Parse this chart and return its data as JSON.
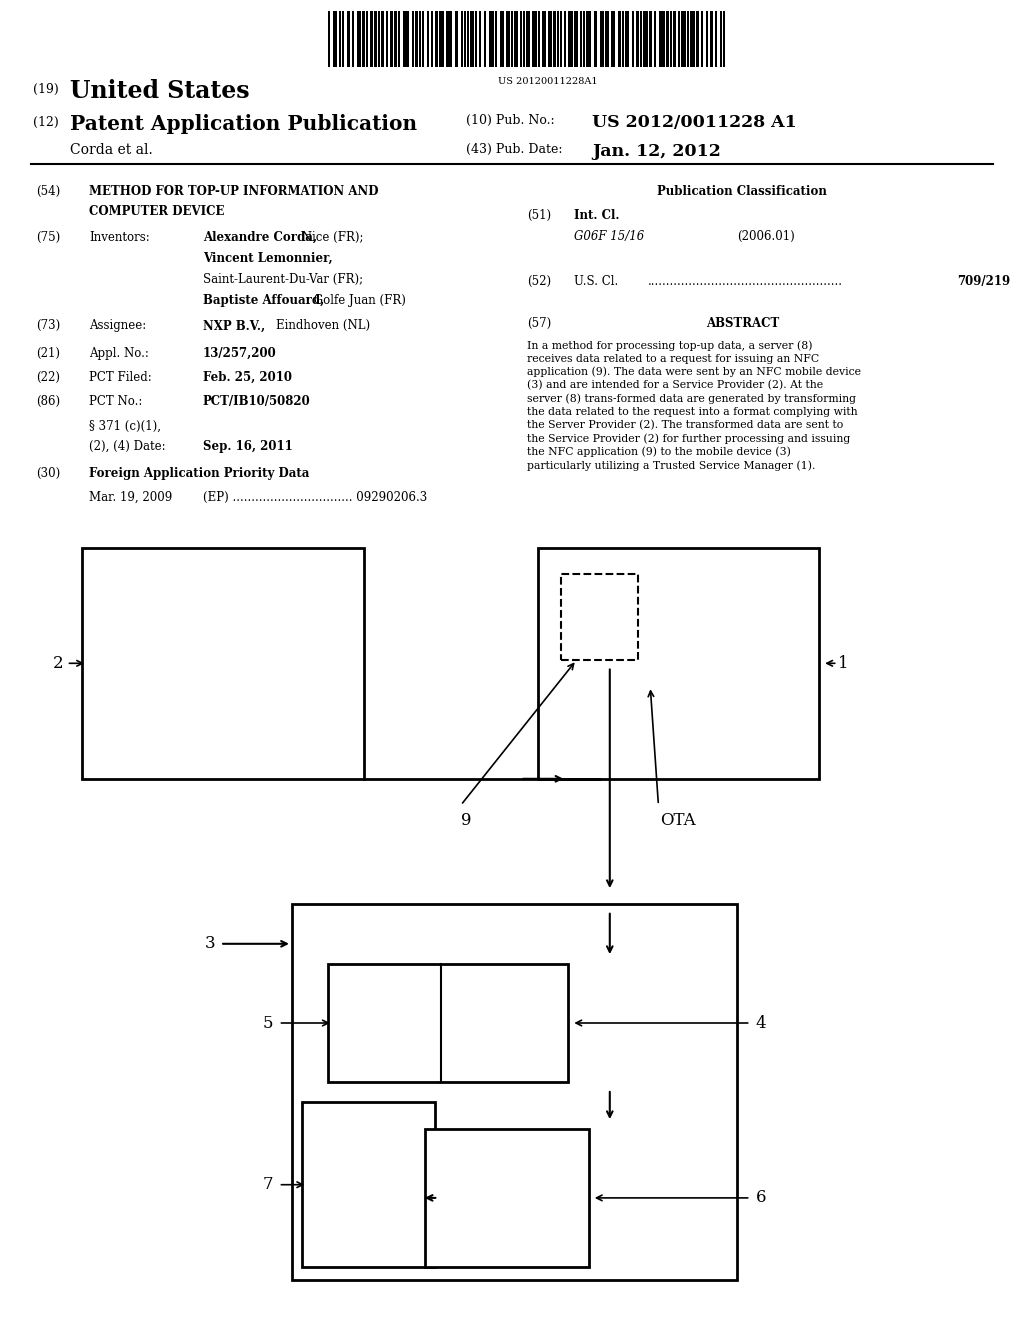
{
  "background_color": "#ffffff",
  "barcode_text": "US 20120011228A1",
  "header": {
    "country_number": "(19)",
    "country": "United States",
    "pub_type_number": "(12)",
    "pub_type": "Patent Application Publication",
    "pub_no_label": "(10) Pub. No.:",
    "pub_no": "US 2012/0011228 A1",
    "authors": "Corda et al.",
    "pub_date_label": "(43) Pub. Date:",
    "pub_date": "Jan. 12, 2012"
  },
  "right_col_top": {
    "pub_class_title": "Publication Classification",
    "int_cl_code": "G06F 15/16",
    "int_cl_year": "(2006.01)",
    "us_cl_dots": "....................................................",
    "us_cl_value": "709/219"
  },
  "abstract": {
    "title": "ABSTRACT",
    "text": "In a method for processing top-up data, a server (8) receives data related to a request for issuing an NFC application (9). The data were sent by an NFC mobile device (3) and are intended for a Service Provider (2). At the server (8) trans-formed data are generated by transforming the data related to the request into a format complying with the Server Provider (2). The transformed data are sent to the Service Provider (2) for further processing and issuing the NFC application (9) to the mobile device (3) particularly utilizing a Trusted Service Manager (1)."
  }
}
